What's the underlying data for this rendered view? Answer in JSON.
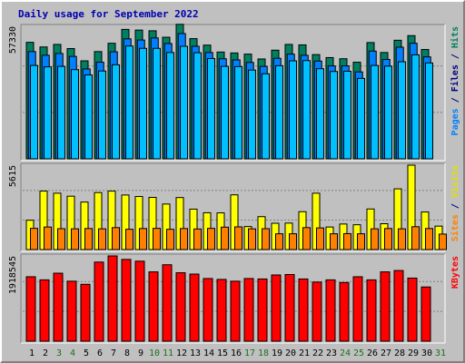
{
  "chart_data": {
    "title": "Daily usage for September 2022",
    "x": {
      "days": [
        "1",
        "2",
        "3",
        "4",
        "5",
        "6",
        "7",
        "8",
        "9",
        "10",
        "11",
        "12",
        "13",
        "14",
        "15",
        "16",
        "17",
        "18",
        "19",
        "20",
        "21",
        "22",
        "23",
        "24",
        "25",
        "26",
        "27",
        "28",
        "29",
        "30",
        "31"
      ],
      "weekend_days": [
        "3",
        "4",
        "10",
        "11",
        "17",
        "18",
        "24",
        "25",
        "31"
      ],
      "day_color": "#000000",
      "weekend_color": "#1e6e1e"
    },
    "panels": [
      {
        "type": "bar",
        "max_label": "57330",
        "max_value": 57330,
        "legend": [
          {
            "text": "Pages",
            "color": "#0080ff"
          },
          {
            "text": " / ",
            "color": "#000080"
          },
          {
            "text": "Files",
            "color": "#000080"
          },
          {
            "text": " / ",
            "color": "#000080"
          },
          {
            "text": "Hits",
            "color": "#008060"
          }
        ],
        "series": [
          {
            "name": "Hits",
            "color": "#008060",
            "values": [
              50400,
              48400,
              49500,
              47700,
              42400,
              46400,
              50000,
              56000,
              55700,
              55400,
              52600,
              58200,
              52000,
              49200,
              46200,
              45800,
              45300,
              43200,
              47000,
              49500,
              49300,
              45100,
              43800,
              43300,
              41800,
              50300,
              46000,
              51300,
              53300,
              47300,
              0
            ]
          },
          {
            "name": "Files",
            "color": "#0080ff",
            "values": [
              46400,
              44800,
              45600,
              44300,
              38900,
              41800,
              46300,
              51900,
              51400,
              52300,
              49900,
              54200,
              48700,
              46000,
              43300,
              42800,
              41700,
              40000,
              43500,
              45300,
              44800,
              42300,
              40200,
              40200,
              37600,
              46600,
              43000,
              48300,
              50000,
              44100,
              0
            ]
          },
          {
            "name": "Pages",
            "color": "#00c0ff",
            "values": [
              40400,
              39800,
              40000,
              38600,
              36300,
              38000,
              40700,
              48800,
              47800,
              47800,
              46000,
              48700,
              45900,
              43400,
              40000,
              39900,
              38400,
              36800,
              40300,
              42400,
              42500,
              39000,
              37800,
              37900,
              34800,
              40400,
              40100,
              42000,
              45000,
              41500,
              0
            ]
          }
        ]
      },
      {
        "type": "bar",
        "max_label": "5615",
        "max_value": 5615,
        "legend": [
          {
            "text": "Sites",
            "color": "#ff8000"
          },
          {
            "text": " / ",
            "color": "#000080"
          },
          {
            "text": "Visits",
            "color": "#e0e000"
          }
        ],
        "series": [
          {
            "name": "Visits",
            "color": "#ffff00",
            "values": [
              1950,
              3890,
              3750,
              3550,
              3160,
              3790,
              3890,
              3630,
              3530,
              3470,
              3030,
              3460,
              2690,
              2450,
              2440,
              3640,
              1530,
              2190,
              1750,
              1760,
              2520,
              3750,
              1500,
              1700,
              1650,
              2700,
              1720,
              4040,
              5615,
              2500,
              1560
            ]
          },
          {
            "name": "Sites",
            "color": "#ff8000",
            "values": [
              1410,
              1500,
              1390,
              1380,
              1400,
              1380,
              1460,
              1350,
              1400,
              1410,
              1350,
              1400,
              1370,
              1410,
              1490,
              1510,
              1380,
              1390,
              1050,
              1050,
              1460,
              1440,
              1050,
              1060,
              1050,
              1380,
              1400,
              1380,
              1520,
              1400,
              1030
            ]
          }
        ]
      },
      {
        "type": "bar",
        "max_label": "1918545",
        "max_value": 1918545,
        "legend": [
          {
            "text": "KBytes",
            "color": "#ff0000"
          }
        ],
        "series": [
          {
            "name": "KBytes",
            "color": "#ff0000",
            "values": [
              1450000,
              1380000,
              1530000,
              1350000,
              1280000,
              1780000,
              1918545,
              1840000,
              1800000,
              1560000,
              1720000,
              1540000,
              1510000,
              1410000,
              1390000,
              1350000,
              1410000,
              1400000,
              1490000,
              1500000,
              1400000,
              1330000,
              1380000,
              1320000,
              1450000,
              1380000,
              1560000,
              1590000,
              1420000,
              1220000,
              0
            ]
          }
        ]
      }
    ]
  }
}
